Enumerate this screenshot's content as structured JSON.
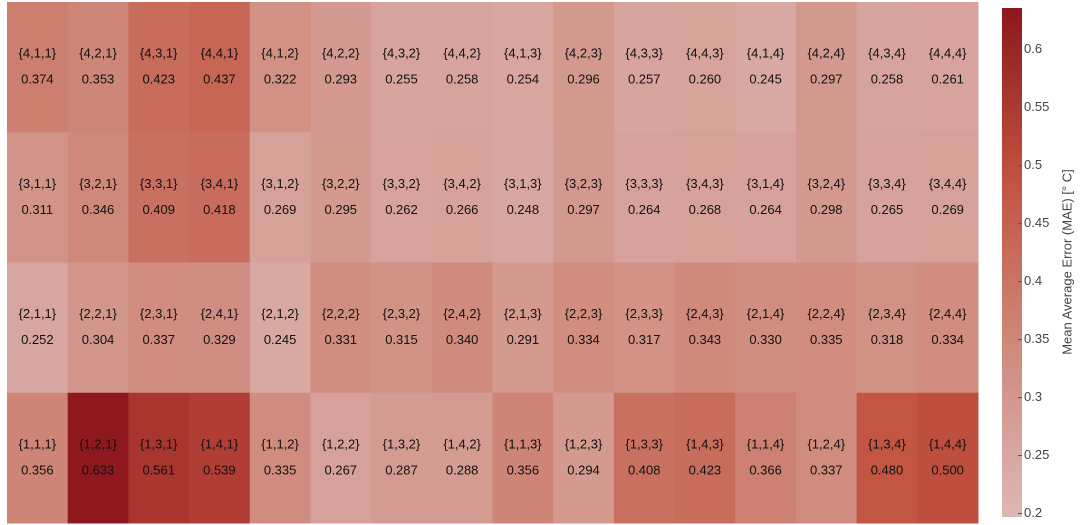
{
  "chart_data": {
    "type": "heatmap",
    "colorbar_label": "Mean Average Error (MAE) [° C]",
    "clim": [
      0.197,
      0.636
    ],
    "cticks": [
      0.2,
      0.25,
      0.3,
      0.35,
      0.4,
      0.45,
      0.5,
      0.55,
      0.6
    ],
    "colormap": [
      "#ddb7b5",
      "#cf8a7c",
      "#c2523f",
      "#8d171d"
    ],
    "cell_labels": [
      [
        "{4,1,1}",
        "{4,2,1}",
        "{4,3,1}",
        "{4,4,1}",
        "{4,1,2}",
        "{4,2,2}",
        "{4,3,2}",
        "{4,4,2}",
        "{4,1,3}",
        "{4,2,3}",
        "{4,3,3}",
        "{4,4,3}",
        "{4,1,4}",
        "{4,2,4}",
        "{4,3,4}",
        "{4,4,4}"
      ],
      [
        "{3,1,1}",
        "{3,2,1}",
        "{3,3,1}",
        "{3,4,1}",
        "{3,1,2}",
        "{3,2,2}",
        "{3,3,2}",
        "{3,4,2}",
        "{3,1,3}",
        "{3,2,3}",
        "{3,3,3}",
        "{3,4,3}",
        "{3,1,4}",
        "{3,2,4}",
        "{3,3,4}",
        "{3,4,4}"
      ],
      [
        "{2,1,1}",
        "{2,2,1}",
        "{2,3,1}",
        "{2,4,1}",
        "{2,1,2}",
        "{2,2,2}",
        "{2,3,2}",
        "{2,4,2}",
        "{2,1,3}",
        "{2,2,3}",
        "{2,3,3}",
        "{2,4,3}",
        "{2,1,4}",
        "{2,2,4}",
        "{2,3,4}",
        "{2,4,4}"
      ],
      [
        "{1,1,1}",
        "{1,2,1}",
        "{1,3,1}",
        "{1,4,1}",
        "{1,1,2}",
        "{1,2,2}",
        "{1,3,2}",
        "{1,4,2}",
        "{1,1,3}",
        "{1,2,3}",
        "{1,3,3}",
        "{1,4,3}",
        "{1,1,4}",
        "{1,2,4}",
        "{1,3,4}",
        "{1,4,4}"
      ]
    ],
    "values": [
      [
        0.374,
        0.353,
        0.423,
        0.437,
        0.322,
        0.293,
        0.255,
        0.258,
        0.254,
        0.296,
        0.257,
        0.26,
        0.245,
        0.297,
        0.258,
        0.261
      ],
      [
        0.311,
        0.346,
        0.409,
        0.418,
        0.269,
        0.295,
        0.262,
        0.266,
        0.248,
        0.297,
        0.264,
        0.268,
        0.264,
        0.298,
        0.265,
        0.269
      ],
      [
        0.252,
        0.304,
        0.337,
        0.329,
        0.245,
        0.331,
        0.315,
        0.34,
        0.291,
        0.334,
        0.317,
        0.343,
        0.33,
        0.335,
        0.318,
        0.334
      ],
      [
        0.356,
        0.633,
        0.561,
        0.539,
        0.335,
        0.267,
        0.287,
        0.288,
        0.356,
        0.294,
        0.408,
        0.423,
        0.366,
        0.337,
        0.48,
        0.5
      ]
    ],
    "value_labels": [
      [
        "0.374",
        "0.353",
        "0.423",
        "0.437",
        "0.322",
        "0.293",
        "0.255",
        "0.258",
        "0.254",
        "0.296",
        "0.257",
        "0.260",
        "0.245",
        "0.297",
        "0.258",
        "0.261"
      ],
      [
        "0.311",
        "0.346",
        "0.409",
        "0.418",
        "0.269",
        "0.295",
        "0.262",
        "0.266",
        "0.248",
        "0.297",
        "0.264",
        "0.268",
        "0.264",
        "0.298",
        "0.265",
        "0.269"
      ],
      [
        "0.252",
        "0.304",
        "0.337",
        "0.329",
        "0.245",
        "0.331",
        "0.315",
        "0.340",
        "0.291",
        "0.334",
        "0.317",
        "0.343",
        "0.330",
        "0.335",
        "0.318",
        "0.334"
      ],
      [
        "0.356",
        "0.633",
        "0.561",
        "0.539",
        "0.335",
        "0.267",
        "0.287",
        "0.288",
        "0.356",
        "0.294",
        "0.408",
        "0.423",
        "0.366",
        "0.337",
        "0.480",
        "0.500"
      ]
    ]
  }
}
